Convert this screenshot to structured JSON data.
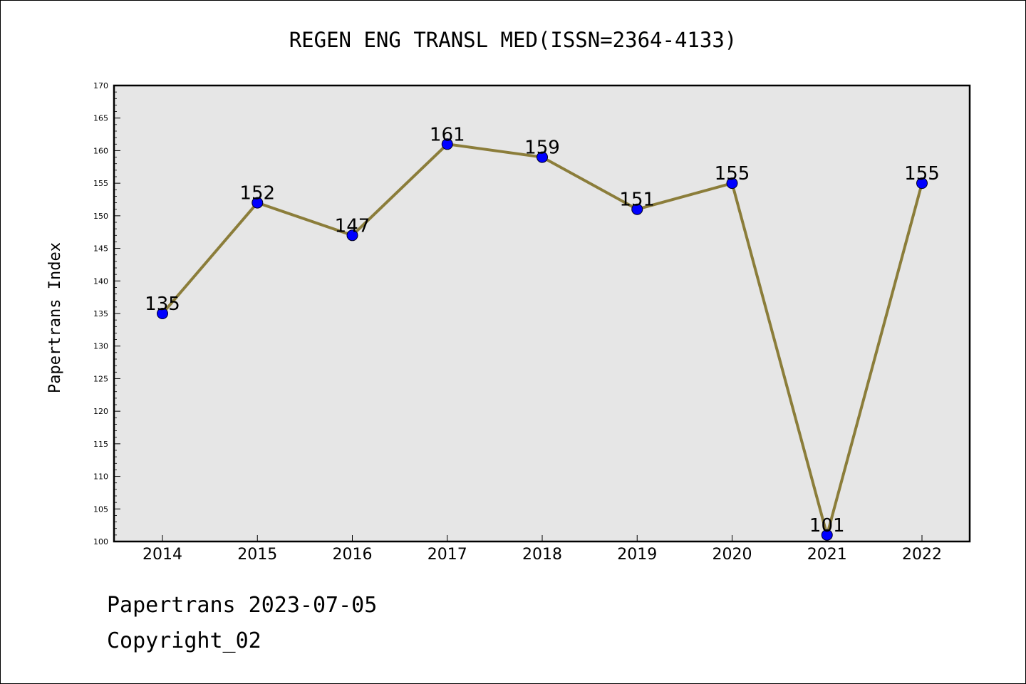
{
  "chart_data": {
    "type": "line",
    "title": "REGEN ENG TRANSL MED(ISSN=2364-4133)",
    "xlabel": "",
    "ylabel": "Papertrans Index",
    "categories": [
      "2014",
      "2015",
      "2016",
      "2017",
      "2018",
      "2019",
      "2020",
      "2021",
      "2022"
    ],
    "values": [
      135,
      152,
      147,
      161,
      159,
      151,
      155,
      101,
      155
    ],
    "ylim": [
      100,
      170
    ],
    "yticks": [
      100,
      105,
      110,
      115,
      120,
      125,
      130,
      135,
      140,
      145,
      150,
      155,
      160,
      165,
      170
    ],
    "grid": false,
    "legend": "none",
    "colors": {
      "line": "#8b7d3a",
      "marker": "#0000ff",
      "plot_background": "#e6e6e6"
    }
  },
  "footer": {
    "source": "Papertrans 2023-07-05",
    "copyright": "Copyright_02"
  }
}
